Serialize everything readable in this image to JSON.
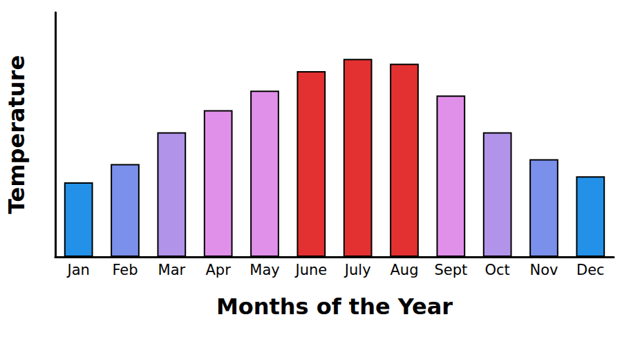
{
  "chart_data": {
    "type": "bar",
    "x_label": "Months of the Year",
    "y_label": "Temperature",
    "categories": [
      "Jan",
      "Feb",
      "Mar",
      "Apr",
      "May",
      "June",
      "July",
      "Aug",
      "Sept",
      "Oct",
      "Nov",
      "Dec"
    ],
    "values": [
      30.5,
      38,
      51,
      60,
      68,
      76,
      81,
      79,
      66,
      51,
      40,
      33
    ],
    "colors": [
      "#2391e8",
      "#7b90ea",
      "#b193ea",
      "#e190ea",
      "#e190ea",
      "#e33131",
      "#e33131",
      "#e33131",
      "#e190ea",
      "#b193ea",
      "#7b90ea",
      "#2391e8"
    ],
    "ylim": [
      0,
      100
    ],
    "grid": false,
    "tick_labels": "x"
  }
}
